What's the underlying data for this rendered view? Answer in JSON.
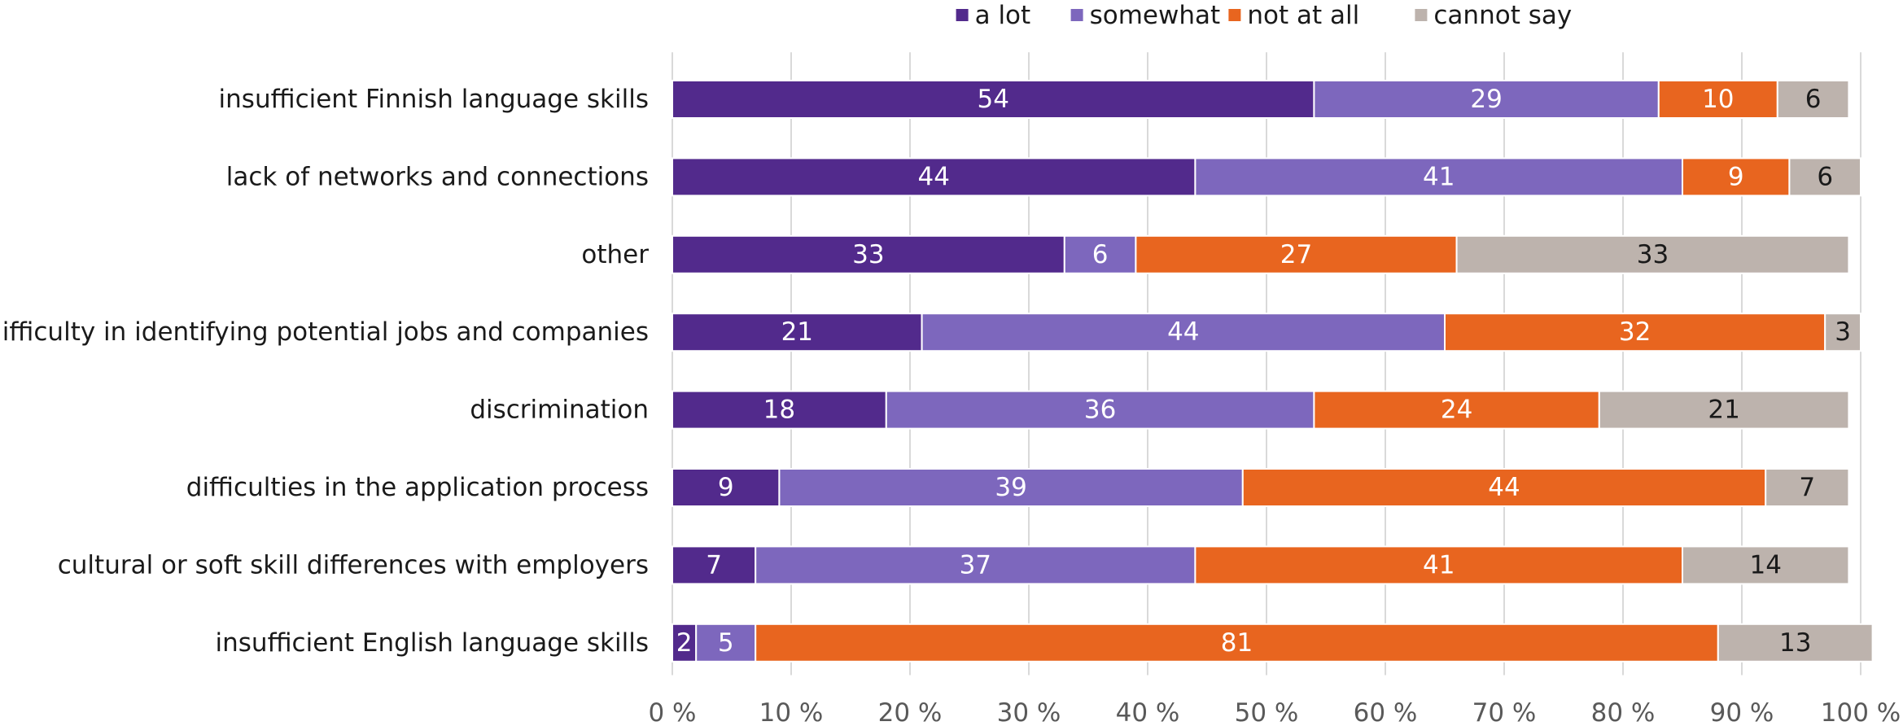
{
  "chart_data": {
    "type": "bar",
    "orientation": "horizontal",
    "stacked": true,
    "categories": [
      "insufficient Finnish language skills",
      "lack of networks and connections",
      "other",
      "difficulty in identifying potential jobs and companies",
      "discrimination",
      "difficulties in the application process",
      "cultural or soft skill differences with employers",
      "insufficient English language skills"
    ],
    "series": [
      {
        "name": "a lot",
        "color": "#522a8c",
        "label_color": "#ffffff",
        "values": [
          54,
          44,
          33,
          21,
          18,
          9,
          7,
          2
        ]
      },
      {
        "name": "somewhat",
        "color": "#7d67bd",
        "label_color": "#ffffff",
        "values": [
          29,
          41,
          6,
          44,
          36,
          39,
          37,
          5
        ]
      },
      {
        "name": "not at all",
        "color": "#e8651f",
        "label_color": "#ffffff",
        "values": [
          10,
          9,
          27,
          32,
          24,
          44,
          41,
          81
        ]
      },
      {
        "name": "cannot say",
        "color": "#bdb3ad",
        "label_color": "#1a1a1a",
        "values": [
          6,
          6,
          33,
          3,
          21,
          7,
          14,
          13
        ]
      }
    ],
    "xaxis": {
      "ticks": [
        0,
        10,
        20,
        30,
        40,
        50,
        60,
        70,
        80,
        90,
        100
      ],
      "tick_labels": [
        "0 %",
        "10 %",
        "20 %",
        "30 %",
        "40 %",
        "50 %",
        "60 %",
        "70 %",
        "80 %",
        "90 %",
        "100 %"
      ]
    },
    "xlim": [
      0,
      100
    ],
    "grid": "vertical",
    "legend_position": "top",
    "gridline_color": "#d9d9d9"
  }
}
